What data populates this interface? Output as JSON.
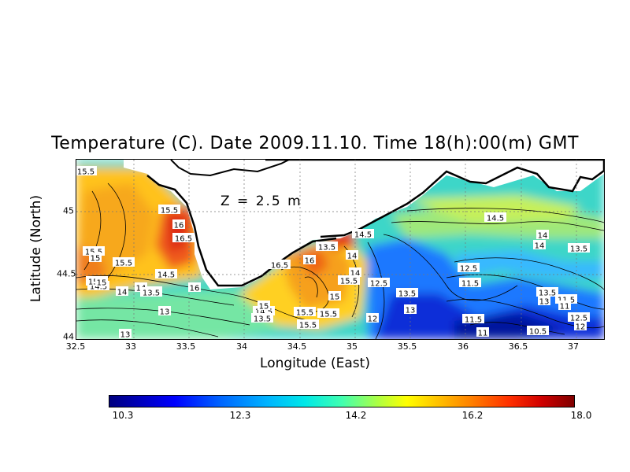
{
  "title": "Temperature (C). Date 2009.11.10. Time 18(h):00(m) GMT",
  "depth_label": "Z = 2.5 m",
  "x_axis": {
    "label": "Longitude (East)",
    "ticks": [
      "32.5",
      "33",
      "33.5",
      "34",
      "34.5",
      "35",
      "35.5",
      "36",
      "36.5",
      "37"
    ]
  },
  "y_axis": {
    "label": "Latitude (North)",
    "ticks": [
      "45",
      "44.5",
      "44"
    ]
  },
  "colorbar": {
    "labels": [
      "10.3",
      "12.3",
      "14.2",
      "16.2",
      "18.0"
    ]
  },
  "contour_labels": [
    "15.5",
    "15.5",
    "16",
    "16.5",
    "15.5",
    "15.5",
    "15",
    "14.5",
    "15.5",
    "16",
    "14",
    "13.5",
    "13",
    "14.5",
    "15",
    "14",
    "13",
    "14.5",
    "13.5",
    "13.5",
    "16",
    "16.5",
    "13.5",
    "14",
    "13.5",
    "14.5",
    "14",
    "15.5",
    "15",
    "15",
    "15.5",
    "15.5",
    "15.5",
    "12.5",
    "13.5",
    "13",
    "12",
    "12.5",
    "11.5",
    "11.5",
    "11",
    "14.5",
    "14",
    "14",
    "13.5",
    "13.5",
    "13",
    "11.5",
    "11",
    "12.5",
    "12",
    "10.5"
  ]
}
